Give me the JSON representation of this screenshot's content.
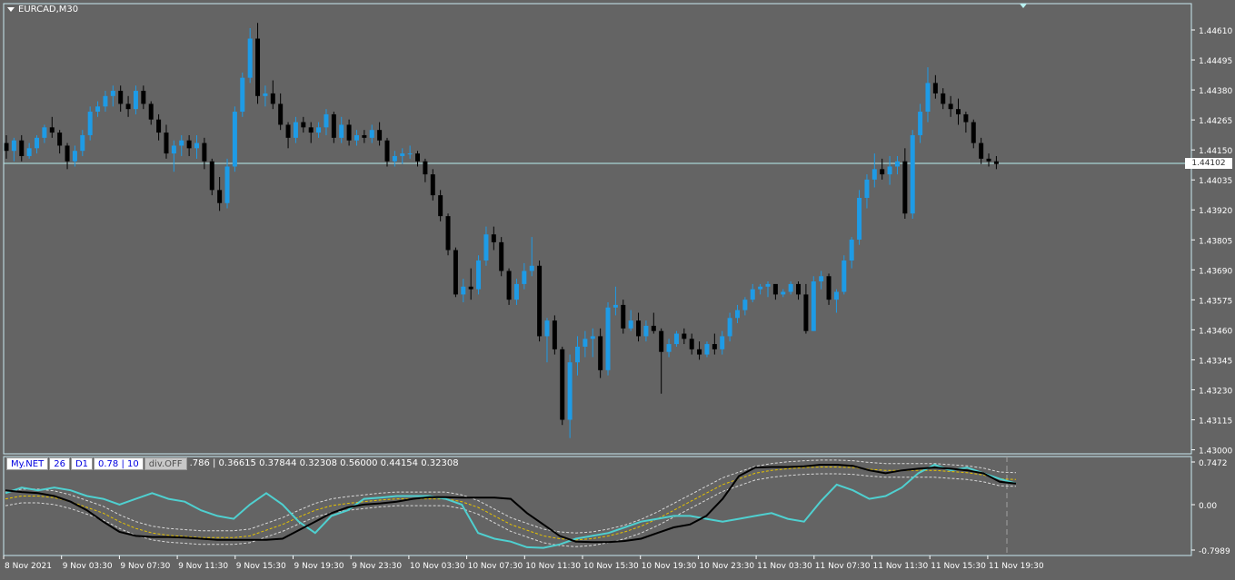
{
  "symbol_title": "EURCAD,M30",
  "current_price": "1.44102",
  "colors": {
    "background": "#646464",
    "bull": "#1e9be6",
    "bear": "#000000",
    "grid_border": "#c8e8f0",
    "price_line": "#b8f0f0",
    "cyan_line": "#4fd0d0",
    "yellow_line": "#e6c300",
    "axis_text": "#ffffff"
  },
  "price_axis_labels": [
    "1.44610",
    "1.44495",
    "1.44380",
    "1.44265",
    "1.44150",
    "1.44035",
    "1.43920",
    "1.43805",
    "1.43690",
    "1.43575",
    "1.43460",
    "1.43345",
    "1.43230",
    "1.43115",
    "1.43000"
  ],
  "indicator_axis_labels": [
    "0.7472",
    "0.00",
    "-0.7989"
  ],
  "time_axis_labels": [
    "8 Nov 2021",
    "9 Nov 03:30",
    "9 Nov 07:30",
    "9 Nov 11:30",
    "9 Nov 15:30",
    "9 Nov 19:30",
    "9 Nov 23:30",
    "10 Nov 03:30",
    "10 Nov 07:30",
    "10 Nov 11:30",
    "10 Nov 15:30",
    "10 Nov 19:30",
    "10 Nov 23:30",
    "11 Nov 03:30",
    "11 Nov 07:30",
    "11 Nov 11:30",
    "11 Nov 15:30",
    "11 Nov 19:30"
  ],
  "indicator_hud": {
    "name": "My.NET",
    "period": "26",
    "timeframe": "D1",
    "params": "0.78 | 10",
    "div": "div.OFF",
    "values": ".786  |  0.36615 0.37844 0.32308 0.56000 0.44154 0.32308"
  },
  "chart_data": {
    "type": "candlestick",
    "y_range": [
      1.43,
      1.447
    ],
    "candles": [
      [
        1.4418,
        1.4421,
        1.4412,
        1.4415
      ],
      [
        1.4415,
        1.442,
        1.4411,
        1.4419
      ],
      [
        1.4419,
        1.4421,
        1.4411,
        1.4413
      ],
      [
        1.4413,
        1.4418,
        1.4412,
        1.4416
      ],
      [
        1.4416,
        1.4421,
        1.4414,
        1.442
      ],
      [
        1.442,
        1.4425,
        1.4418,
        1.4424
      ],
      [
        1.4424,
        1.4428,
        1.442,
        1.4422
      ],
      [
        1.4422,
        1.4423,
        1.4414,
        1.4417
      ],
      [
        1.4417,
        1.4418,
        1.4408,
        1.4411
      ],
      [
        1.4411,
        1.4417,
        1.4409,
        1.4415
      ],
      [
        1.4415,
        1.4423,
        1.4413,
        1.4421
      ],
      [
        1.4421,
        1.4432,
        1.4419,
        1.443
      ],
      [
        1.443,
        1.4434,
        1.4428,
        1.4432
      ],
      [
        1.4432,
        1.4438,
        1.443,
        1.4436
      ],
      [
        1.4436,
        1.444,
        1.4432,
        1.4438
      ],
      [
        1.4438,
        1.444,
        1.443,
        1.4433
      ],
      [
        1.4433,
        1.4436,
        1.4428,
        1.4431
      ],
      [
        1.4431,
        1.444,
        1.4429,
        1.4438
      ],
      [
        1.4438,
        1.444,
        1.4431,
        1.4433
      ],
      [
        1.4433,
        1.4434,
        1.4425,
        1.4427
      ],
      [
        1.4427,
        1.4429,
        1.4419,
        1.4422
      ],
      [
        1.4422,
        1.4425,
        1.4412,
        1.4414
      ],
      [
        1.4414,
        1.4419,
        1.4407,
        1.4417
      ],
      [
        1.4417,
        1.4421,
        1.4413,
        1.4419
      ],
      [
        1.4419,
        1.4421,
        1.4413,
        1.4416
      ],
      [
        1.4416,
        1.4421,
        1.4412,
        1.4418
      ],
      [
        1.4418,
        1.442,
        1.4408,
        1.4411
      ],
      [
        1.4411,
        1.4412,
        1.4398,
        1.44
      ],
      [
        1.44,
        1.4405,
        1.4392,
        1.4395
      ],
      [
        1.4395,
        1.4412,
        1.4393,
        1.4409
      ],
      [
        1.4409,
        1.4432,
        1.4407,
        1.443
      ],
      [
        1.443,
        1.4445,
        1.4428,
        1.4443
      ],
      [
        1.4443,
        1.4462,
        1.4441,
        1.4458
      ],
      [
        1.4458,
        1.4464,
        1.4433,
        1.4436
      ],
      [
        1.4436,
        1.444,
        1.4432,
        1.4437
      ],
      [
        1.4437,
        1.4442,
        1.4431,
        1.4433
      ],
      [
        1.4433,
        1.4437,
        1.4423,
        1.4425
      ],
      [
        1.4425,
        1.4426,
        1.4416,
        1.442
      ],
      [
        1.442,
        1.4428,
        1.4418,
        1.4426
      ],
      [
        1.4426,
        1.4428,
        1.4422,
        1.4424
      ],
      [
        1.4424,
        1.4426,
        1.4418,
        1.4422
      ],
      [
        1.4422,
        1.4426,
        1.442,
        1.4424
      ],
      [
        1.4424,
        1.4431,
        1.4421,
        1.4429
      ],
      [
        1.4429,
        1.443,
        1.4418,
        1.442
      ],
      [
        1.442,
        1.4428,
        1.4418,
        1.4425
      ],
      [
        1.4425,
        1.4427,
        1.4417,
        1.4419
      ],
      [
        1.4419,
        1.4423,
        1.4417,
        1.4421
      ],
      [
        1.4421,
        1.4423,
        1.4418,
        1.442
      ],
      [
        1.442,
        1.4425,
        1.4418,
        1.4423
      ],
      [
        1.4423,
        1.4426,
        1.4417,
        1.4419
      ],
      [
        1.4419,
        1.442,
        1.4409,
        1.4411
      ],
      [
        1.4411,
        1.4415,
        1.4409,
        1.4413
      ],
      [
        1.4413,
        1.4416,
        1.441,
        1.4414
      ],
      [
        1.4414,
        1.4417,
        1.4412,
        1.4414
      ],
      [
        1.4414,
        1.4415,
        1.4409,
        1.4411
      ],
      [
        1.4411,
        1.4412,
        1.4403,
        1.4406
      ],
      [
        1.4406,
        1.4408,
        1.4396,
        1.4398
      ],
      [
        1.4398,
        1.44,
        1.4388,
        1.439
      ],
      [
        1.439,
        1.4391,
        1.4375,
        1.4377
      ],
      [
        1.4377,
        1.4378,
        1.4359,
        1.436
      ],
      [
        1.436,
        1.4366,
        1.4357,
        1.4363
      ],
      [
        1.4363,
        1.437,
        1.4358,
        1.4362
      ],
      [
        1.4362,
        1.4375,
        1.436,
        1.4373
      ],
      [
        1.4373,
        1.4386,
        1.4371,
        1.4383
      ],
      [
        1.4383,
        1.4386,
        1.4377,
        1.438
      ],
      [
        1.438,
        1.4382,
        1.4367,
        1.4369
      ],
      [
        1.4369,
        1.437,
        1.4356,
        1.4358
      ],
      [
        1.4358,
        1.4366,
        1.4356,
        1.4364
      ],
      [
        1.4364,
        1.4372,
        1.4362,
        1.4369
      ],
      [
        1.4369,
        1.4382,
        1.4367,
        1.4371
      ],
      [
        1.4371,
        1.4373,
        1.4342,
        1.4344
      ],
      [
        1.4344,
        1.4351,
        1.4334,
        1.435
      ],
      [
        1.435,
        1.4352,
        1.4337,
        1.4339
      ],
      [
        1.4339,
        1.434,
        1.431,
        1.4312
      ],
      [
        1.4312,
        1.4337,
        1.4305,
        1.4334
      ],
      [
        1.4334,
        1.4344,
        1.4329,
        1.434
      ],
      [
        1.434,
        1.4346,
        1.4336,
        1.4343
      ],
      [
        1.4343,
        1.4347,
        1.4336,
        1.4344
      ],
      [
        1.4344,
        1.4347,
        1.4328,
        1.4331
      ],
      [
        1.4331,
        1.4357,
        1.4329,
        1.4355
      ],
      [
        1.4355,
        1.4363,
        1.4352,
        1.4356
      ],
      [
        1.4356,
        1.4358,
        1.4345,
        1.4347
      ],
      [
        1.4347,
        1.4354,
        1.4346,
        1.435
      ],
      [
        1.435,
        1.4353,
        1.4342,
        1.4344
      ],
      [
        1.4344,
        1.435,
        1.4342,
        1.4348
      ],
      [
        1.4348,
        1.4353,
        1.4345,
        1.4346
      ],
      [
        1.4346,
        1.4347,
        1.4322,
        1.4338
      ],
      [
        1.4338,
        1.4343,
        1.4336,
        1.4341
      ],
      [
        1.4341,
        1.4346,
        1.434,
        1.4345
      ],
      [
        1.4345,
        1.4347,
        1.4341,
        1.4343
      ],
      [
        1.4343,
        1.4345,
        1.4337,
        1.4339
      ],
      [
        1.4339,
        1.4342,
        1.4335,
        1.4337
      ],
      [
        1.4337,
        1.4342,
        1.4336,
        1.4341
      ],
      [
        1.4341,
        1.4345,
        1.4337,
        1.4339
      ],
      [
        1.4339,
        1.4346,
        1.4337,
        1.4344
      ],
      [
        1.4344,
        1.4353,
        1.4342,
        1.4351
      ],
      [
        1.4351,
        1.4356,
        1.4349,
        1.4354
      ],
      [
        1.4354,
        1.4359,
        1.4352,
        1.4358
      ],
      [
        1.4358,
        1.4364,
        1.4357,
        1.4362
      ],
      [
        1.4362,
        1.4364,
        1.436,
        1.4363
      ],
      [
        1.4363,
        1.4365,
        1.4359,
        1.4364
      ],
      [
        1.4364,
        1.4363,
        1.4358,
        1.436
      ],
      [
        1.436,
        1.4362,
        1.4359,
        1.4361
      ],
      [
        1.4361,
        1.4365,
        1.436,
        1.4364
      ],
      [
        1.4364,
        1.4365,
        1.4358,
        1.436
      ],
      [
        1.436,
        1.4364,
        1.4345,
        1.4346
      ],
      [
        1.4346,
        1.4367,
        1.4346,
        1.4365
      ],
      [
        1.4365,
        1.4369,
        1.4362,
        1.4367
      ],
      [
        1.4367,
        1.4368,
        1.4356,
        1.4358
      ],
      [
        1.4358,
        1.4362,
        1.4353,
        1.4361
      ],
      [
        1.4361,
        1.4375,
        1.436,
        1.4373
      ],
      [
        1.4373,
        1.4382,
        1.437,
        1.4381
      ],
      [
        1.4381,
        1.44,
        1.4379,
        1.4397
      ],
      [
        1.4397,
        1.4406,
        1.4393,
        1.4404
      ],
      [
        1.4404,
        1.4414,
        1.4401,
        1.4408
      ],
      [
        1.4408,
        1.4412,
        1.4404,
        1.4406
      ],
      [
        1.4406,
        1.4413,
        1.4402,
        1.4409
      ],
      [
        1.4409,
        1.4413,
        1.4406,
        1.4411
      ],
      [
        1.4411,
        1.4416,
        1.4389,
        1.4391
      ],
      [
        1.4391,
        1.4423,
        1.4389,
        1.4421
      ],
      [
        1.4421,
        1.4433,
        1.4418,
        1.443
      ],
      [
        1.443,
        1.4447,
        1.4426,
        1.4441
      ],
      [
        1.4441,
        1.4444,
        1.4435,
        1.4437
      ],
      [
        1.4437,
        1.4439,
        1.4431,
        1.4433
      ],
      [
        1.4433,
        1.4436,
        1.4428,
        1.4431
      ],
      [
        1.4431,
        1.4435,
        1.4425,
        1.4429
      ],
      [
        1.4429,
        1.443,
        1.4422,
        1.4426
      ],
      [
        1.4426,
        1.4427,
        1.4416,
        1.4418
      ],
      [
        1.4418,
        1.442,
        1.441,
        1.4412
      ],
      [
        1.4412,
        1.4414,
        1.4409,
        1.4411
      ],
      [
        1.4411,
        1.4413,
        1.4408,
        1.441
      ]
    ],
    "indicator": {
      "y_range": [
        -0.7989,
        0.7472
      ],
      "black": [
        0.25,
        0.22,
        0.2,
        0.15,
        0.05,
        -0.1,
        -0.3,
        -0.48,
        -0.55,
        -0.57,
        -0.57,
        -0.58,
        -0.6,
        -0.62,
        -0.62,
        -0.62,
        -0.62,
        -0.6,
        -0.45,
        -0.3,
        -0.15,
        -0.05,
        0.0,
        0.02,
        0.05,
        0.1,
        0.13,
        0.13,
        0.12,
        0.12,
        0.12,
        0.1,
        -0.15,
        -0.35,
        -0.55,
        -0.65,
        -0.66,
        -0.66,
        -0.64,
        -0.6,
        -0.5,
        -0.4,
        -0.35,
        -0.2,
        0.1,
        0.5,
        0.65,
        0.66,
        0.66,
        0.67,
        0.7,
        0.7,
        0.68,
        0.6,
        0.55,
        0.6,
        0.63,
        0.65,
        0.63,
        0.6,
        0.55,
        0.4,
        0.37
      ],
      "cyan": [
        0.2,
        0.3,
        0.25,
        0.3,
        0.25,
        0.15,
        0.1,
        0.0,
        0.1,
        0.2,
        0.1,
        0.05,
        -0.1,
        -0.2,
        -0.25,
        0.0,
        0.2,
        0.0,
        -0.3,
        -0.5,
        -0.2,
        -0.1,
        0.1,
        0.12,
        0.15,
        0.15,
        0.15,
        0.1,
        0.0,
        -0.5,
        -0.6,
        -0.65,
        -0.75,
        -0.76,
        -0.7,
        -0.6,
        -0.55,
        -0.5,
        -0.4,
        -0.3,
        -0.25,
        -0.2,
        -0.2,
        -0.25,
        -0.3,
        -0.25,
        -0.2,
        -0.15,
        -0.25,
        -0.3,
        0.05,
        0.35,
        0.25,
        0.1,
        0.15,
        0.3,
        0.55,
        0.7,
        0.6,
        0.65,
        0.55,
        0.45,
        0.37
      ],
      "yellow": [
        0.1,
        0.15,
        0.15,
        0.12,
        0.05,
        -0.05,
        -0.15,
        -0.3,
        -0.42,
        -0.5,
        -0.54,
        -0.56,
        -0.58,
        -0.58,
        -0.58,
        -0.55,
        -0.45,
        -0.35,
        -0.22,
        -0.1,
        -0.02,
        0.02,
        0.05,
        0.08,
        0.1,
        0.1,
        0.1,
        0.1,
        0.05,
        -0.05,
        -0.2,
        -0.35,
        -0.45,
        -0.55,
        -0.6,
        -0.62,
        -0.6,
        -0.55,
        -0.48,
        -0.38,
        -0.25,
        -0.1,
        0.05,
        0.2,
        0.35,
        0.45,
        0.55,
        0.6,
        0.63,
        0.65,
        0.66,
        0.66,
        0.65,
        0.62,
        0.6,
        0.6,
        0.6,
        0.6,
        0.58,
        0.56,
        0.52,
        0.45,
        0.44
      ]
    }
  }
}
